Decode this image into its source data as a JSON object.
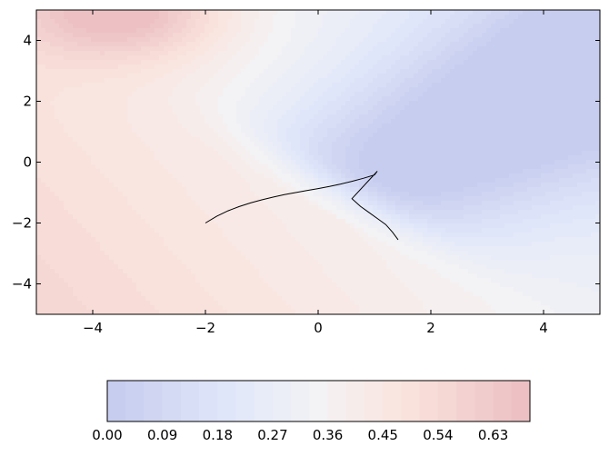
{
  "chart_data": {
    "type": "contour",
    "x_range": [
      -5,
      5
    ],
    "y_range": [
      -5,
      5
    ],
    "x_ticks": [
      -4,
      -2,
      0,
      2,
      4
    ],
    "y_ticks": [
      -4,
      -2,
      0,
      2,
      4
    ],
    "x_tick_labels": [
      "−4",
      "−2",
      "0",
      "2",
      "4"
    ],
    "y_tick_labels": [
      "−4",
      "−2",
      "0",
      "2",
      "4"
    ],
    "grid": false,
    "colormap": "coolwarm (light, semi-transparent)",
    "colorbar": {
      "orientation": "horizontal",
      "location": "bottom",
      "range": [
        0.0,
        0.69
      ],
      "levels": 23,
      "tick_values": [
        0.0,
        0.09,
        0.18,
        0.27,
        0.36,
        0.45,
        0.54,
        0.63
      ],
      "tick_labels": [
        "0.00",
        "0.09",
        "0.18",
        "0.27",
        "0.36",
        "0.45",
        "0.54",
        "0.63"
      ]
    },
    "path": {
      "color": "#000000",
      "points": [
        [
          -2.0,
          -2.0
        ],
        [
          -1.8,
          -1.78
        ],
        [
          -1.6,
          -1.6
        ],
        [
          -1.4,
          -1.46
        ],
        [
          -1.2,
          -1.34
        ],
        [
          -1.0,
          -1.24
        ],
        [
          -0.8,
          -1.15
        ],
        [
          -0.6,
          -1.07
        ],
        [
          -0.4,
          -1.0
        ],
        [
          -0.2,
          -0.93
        ],
        [
          0.0,
          -0.87
        ],
        [
          0.2,
          -0.8
        ],
        [
          0.4,
          -0.72
        ],
        [
          0.6,
          -0.63
        ],
        [
          0.8,
          -0.53
        ],
        [
          1.0,
          -0.42
        ],
        [
          1.05,
          -0.3
        ],
        [
          0.6,
          -1.2
        ],
        [
          0.75,
          -1.45
        ],
        [
          0.9,
          -1.65
        ],
        [
          1.05,
          -1.85
        ],
        [
          1.2,
          -2.05
        ],
        [
          1.32,
          -2.3
        ],
        [
          1.42,
          -2.55
        ]
      ]
    }
  }
}
